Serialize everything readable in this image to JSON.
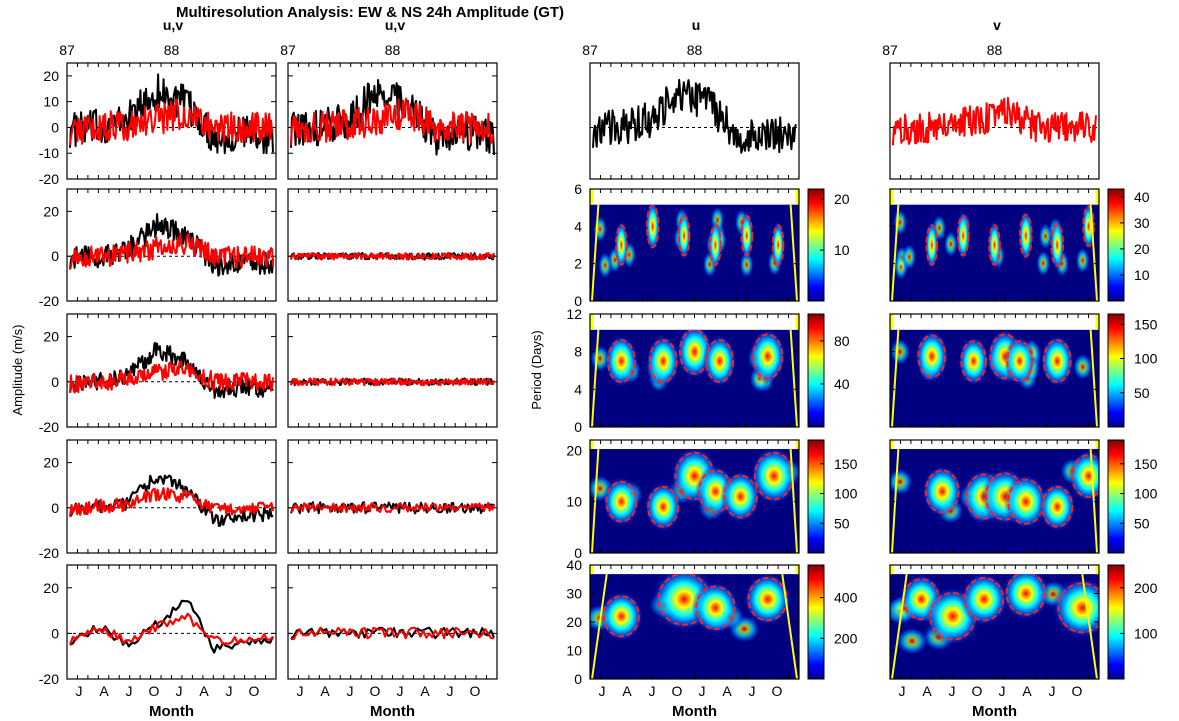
{
  "figure": {
    "title": "Multiresolution Analysis: EW & NS 24h Amplitude (GT)",
    "col_titles": [
      "u,v",
      "u,v",
      "u",
      "v"
    ],
    "year_labels": [
      "87",
      "88"
    ],
    "month_labels": [
      "J",
      "A",
      "J",
      "O",
      "J",
      "A",
      "J",
      "O"
    ],
    "xlabel": "Month",
    "ylabel_left": "Amplitude (m/s)",
    "ylabel_right": "Period (Days)"
  },
  "colors": {
    "u_series": "#000000",
    "v_series": "#ff0000",
    "contour": "#ff2020",
    "cone_of_influence": "#ffff00",
    "background": "#000080"
  },
  "chart_data": [
    {
      "type": "line",
      "panel": "approximation u,v level 1",
      "ylim": [
        -20,
        25
      ],
      "yticks": [
        -20,
        -10,
        0,
        10,
        20
      ],
      "series": [
        {
          "name": "u",
          "amplitude": 7,
          "trend": [
            -1,
            0,
            3,
            14,
            9,
            -4,
            -2,
            -4
          ]
        },
        {
          "name": "v",
          "amplitude": 6,
          "trend": [
            -1,
            0,
            1,
            3,
            6,
            0,
            0,
            0
          ]
        }
      ]
    },
    {
      "type": "line",
      "panel": "approximation u,v level 2",
      "ylim": [
        -20,
        30
      ],
      "yticks": [
        -20,
        0,
        20
      ],
      "series": [
        {
          "name": "u",
          "amplitude": 5,
          "trend": [
            -1,
            0,
            3,
            14,
            9,
            -4,
            -2,
            -4
          ]
        },
        {
          "name": "v",
          "amplitude": 5,
          "trend": [
            -1,
            0,
            1,
            4,
            6,
            0,
            0,
            0
          ]
        }
      ]
    },
    {
      "type": "line",
      "panel": "approximation u,v level 3",
      "ylim": [
        -20,
        30
      ],
      "yticks": [
        -20,
        0,
        20
      ],
      "series": [
        {
          "name": "u",
          "amplitude": 4,
          "trend": [
            -1,
            0,
            3,
            14,
            9,
            -4,
            -2,
            -4
          ]
        },
        {
          "name": "v",
          "amplitude": 4,
          "trend": [
            -1,
            0,
            1,
            4,
            6,
            0,
            0,
            0
          ]
        }
      ]
    },
    {
      "type": "line",
      "panel": "approximation u,v level 4",
      "ylim": [
        -20,
        30
      ],
      "yticks": [
        -20,
        0,
        20
      ],
      "series": [
        {
          "name": "u",
          "amplitude": 3,
          "trend": [
            -1,
            1,
            2,
            14,
            8,
            -6,
            -3,
            -3
          ]
        },
        {
          "name": "v",
          "amplitude": 3,
          "trend": [
            -1,
            1,
            1,
            6,
            5,
            -1,
            0,
            -1
          ]
        }
      ]
    },
    {
      "type": "line",
      "panel": "approximation u,v level 5",
      "ylim": [
        -20,
        30
      ],
      "yticks": [
        -20,
        0,
        20
      ],
      "series": [
        {
          "name": "u",
          "amplitude": 2,
          "trend": [
            -3,
            3,
            -5,
            4,
            15,
            -7,
            -4,
            -2
          ]
        },
        {
          "name": "v",
          "amplitude": 2,
          "trend": [
            -3,
            3,
            -4,
            3,
            8,
            -3,
            -3,
            -2
          ]
        }
      ]
    },
    {
      "type": "line",
      "panel": "detail u,v level 1",
      "ylim": [
        -20,
        25
      ],
      "yticks": [
        -20,
        -10,
        0,
        10,
        20
      ],
      "series": [
        {
          "name": "u",
          "amplitude": 7,
          "trend": [
            -1,
            0,
            3,
            14,
            9,
            -4,
            -2,
            -4
          ]
        },
        {
          "name": "v",
          "amplitude": 6,
          "trend": [
            -1,
            0,
            1,
            3,
            6,
            0,
            0,
            0
          ]
        }
      ]
    },
    {
      "type": "line",
      "panel": "detail u,v level 2",
      "ylim": [
        -20,
        30
      ],
      "yticks": [
        -20,
        0,
        20
      ],
      "series": [
        {
          "name": "u",
          "amplitude": 1.5,
          "trend": [
            0,
            0,
            0,
            0,
            0,
            0,
            0,
            0
          ]
        },
        {
          "name": "v",
          "amplitude": 1.5,
          "trend": [
            0,
            0,
            0,
            0,
            0,
            0,
            0,
            0
          ]
        }
      ]
    },
    {
      "type": "line",
      "panel": "detail u,v level 3",
      "ylim": [
        -20,
        30
      ],
      "yticks": [
        -20,
        0,
        20
      ],
      "series": [
        {
          "name": "u",
          "amplitude": 1.5,
          "trend": [
            0,
            0,
            0,
            0,
            0,
            0,
            0,
            0
          ]
        },
        {
          "name": "v",
          "amplitude": 1.5,
          "trend": [
            0,
            0,
            0,
            0,
            0,
            0,
            0,
            0
          ]
        }
      ]
    },
    {
      "type": "line",
      "panel": "detail u,v level 4",
      "ylim": [
        -20,
        30
      ],
      "yticks": [
        -20,
        0,
        20
      ],
      "series": [
        {
          "name": "u",
          "amplitude": 2.5,
          "trend": [
            0,
            0,
            0,
            0,
            0,
            0,
            0,
            0
          ]
        },
        {
          "name": "v",
          "amplitude": 2,
          "trend": [
            0,
            0,
            0,
            0,
            0,
            0,
            0,
            0
          ]
        }
      ]
    },
    {
      "type": "line",
      "panel": "detail u,v level 5",
      "ylim": [
        -20,
        30
      ],
      "yticks": [
        -20,
        0,
        20
      ],
      "series": [
        {
          "name": "u",
          "amplitude": 2.5,
          "trend": [
            0,
            0,
            0,
            0,
            0,
            0,
            0,
            0
          ]
        },
        {
          "name": "v",
          "amplitude": 2.5,
          "trend": [
            0,
            0,
            0,
            0,
            0,
            0,
            0,
            0
          ]
        }
      ]
    },
    {
      "type": "line",
      "panel": "u series",
      "ylim": [
        -20,
        25
      ],
      "series": [
        {
          "name": "u",
          "amplitude": 7,
          "trend": [
            -1,
            0,
            3,
            14,
            9,
            -4,
            -2,
            -4
          ]
        }
      ]
    },
    {
      "type": "line",
      "panel": "v series",
      "ylim": [
        -20,
        25
      ],
      "series": [
        {
          "name": "v",
          "amplitude": 6,
          "trend": [
            -1,
            0,
            1,
            3,
            6,
            0,
            0,
            0
          ]
        }
      ]
    },
    {
      "type": "heatmap",
      "panel": "u wavelet level 1",
      "ylim": [
        0,
        6
      ],
      "yticks": [
        0,
        2,
        4,
        6
      ],
      "colorbar": {
        "ticks": [
          10,
          20
        ],
        "max": 22
      },
      "blobs": [
        [
          0.15,
          3.0,
          0.5
        ],
        [
          0.3,
          4.0,
          0.6
        ],
        [
          0.45,
          3.5,
          0.5
        ],
        [
          0.6,
          3.0,
          0.5
        ],
        [
          0.75,
          3.5,
          0.5
        ],
        [
          0.9,
          3.0,
          0.5
        ]
      ]
    },
    {
      "type": "heatmap",
      "panel": "v wavelet level 1",
      "ylim": [
        0,
        6
      ],
      "yticks": [
        0,
        2,
        4,
        6
      ],
      "colorbar": {
        "ticks": [
          10,
          20,
          30,
          40
        ],
        "max": 43
      },
      "blobs": [
        [
          0.2,
          3.0,
          0.5
        ],
        [
          0.35,
          3.5,
          0.5
        ],
        [
          0.5,
          3.0,
          0.5
        ],
        [
          0.65,
          3.5,
          0.6
        ],
        [
          0.8,
          3.0,
          0.6
        ],
        [
          0.95,
          4.0,
          0.5
        ]
      ]
    },
    {
      "type": "heatmap",
      "panel": "u wavelet level 2",
      "ylim": [
        0,
        12
      ],
      "yticks": [
        0,
        4,
        8,
        12
      ],
      "colorbar": {
        "ticks": [
          40,
          80
        ],
        "max": 105
      },
      "blobs": [
        [
          0.15,
          7.0,
          0.6
        ],
        [
          0.35,
          7.0,
          0.6
        ],
        [
          0.5,
          8.0,
          0.7
        ],
        [
          0.62,
          7.0,
          0.6
        ],
        [
          0.85,
          7.5,
          0.7
        ]
      ]
    },
    {
      "type": "heatmap",
      "panel": "v wavelet level 2",
      "ylim": [
        0,
        12
      ],
      "yticks": [
        0,
        4,
        8,
        12
      ],
      "colorbar": {
        "ticks": [
          50,
          100,
          150
        ],
        "max": 165
      },
      "blobs": [
        [
          0.2,
          7.5,
          0.6
        ],
        [
          0.4,
          7.0,
          0.5
        ],
        [
          0.55,
          7.5,
          0.7
        ],
        [
          0.62,
          7.0,
          0.5
        ],
        [
          0.8,
          7.0,
          0.6
        ]
      ]
    },
    {
      "type": "heatmap",
      "panel": "u wavelet level 3",
      "ylim": [
        0,
        22
      ],
      "yticks": [
        0,
        10,
        20
      ],
      "colorbar": {
        "ticks": [
          50,
          100,
          150
        ],
        "max": 190
      },
      "blobs": [
        [
          0.15,
          10.0,
          0.5
        ],
        [
          0.35,
          9.0,
          0.5
        ],
        [
          0.5,
          15.0,
          0.8
        ],
        [
          0.6,
          12.0,
          0.6
        ],
        [
          0.72,
          11.0,
          0.6
        ],
        [
          0.88,
          15.0,
          0.8
        ]
      ]
    },
    {
      "type": "heatmap",
      "panel": "v wavelet level 3",
      "ylim": [
        0,
        22
      ],
      "yticks": [
        0,
        10,
        20
      ],
      "colorbar": {
        "ticks": [
          50,
          100,
          150
        ],
        "max": 190
      },
      "blobs": [
        [
          0.25,
          12.0,
          0.6
        ],
        [
          0.45,
          11.0,
          0.7
        ],
        [
          0.55,
          11.0,
          0.8
        ],
        [
          0.65,
          10.0,
          0.7
        ],
        [
          0.8,
          9.0,
          0.5
        ],
        [
          0.95,
          15.0,
          0.6
        ]
      ]
    },
    {
      "type": "heatmap",
      "panel": "u wavelet level 4",
      "ylim": [
        0,
        40
      ],
      "yticks": [
        0,
        10,
        20,
        30,
        40
      ],
      "colorbar": {
        "ticks": [
          200,
          400
        ],
        "max": 560
      },
      "blobs": [
        [
          0.15,
          22.0,
          0.5
        ],
        [
          0.45,
          28.0,
          1.0
        ],
        [
          0.6,
          25.0,
          0.6
        ],
        [
          0.85,
          28.0,
          0.6
        ]
      ]
    },
    {
      "type": "heatmap",
      "panel": "v wavelet level 4",
      "ylim": [
        0,
        40
      ],
      "yticks": [
        0,
        10,
        20,
        30,
        40
      ],
      "colorbar": {
        "ticks": [
          100,
          200
        ],
        "max": 250
      },
      "blobs": [
        [
          0.15,
          28.0,
          0.5
        ],
        [
          0.3,
          22.0,
          0.8
        ],
        [
          0.45,
          28.0,
          0.6
        ],
        [
          0.65,
          30.0,
          0.6
        ],
        [
          0.92,
          25.0,
          0.9
        ]
      ]
    }
  ]
}
